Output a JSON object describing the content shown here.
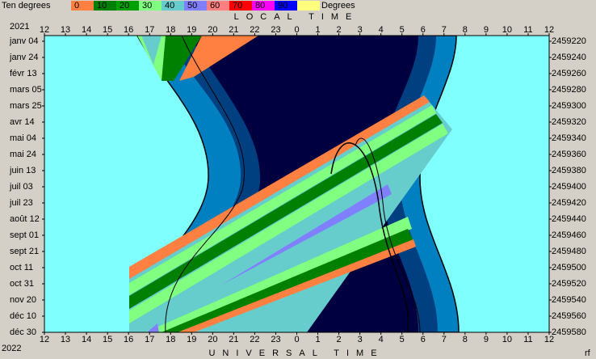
{
  "legend": {
    "title": "Ten degrees",
    "unit": "Degrees",
    "labels": [
      "0",
      "10",
      "20",
      "30",
      "40",
      "50",
      "60",
      "70",
      "80",
      "90"
    ]
  },
  "top_axis_title": "LOCAL TIME",
  "bottom_axis_title": "UNIVERSAL TIME",
  "start_year": "2021",
  "end_year": "2022",
  "corner_label": "rf",
  "top_hours": [
    "12",
    "13",
    "14",
    "15",
    "16",
    "17",
    "18",
    "19",
    "20",
    "21",
    "22",
    "23",
    "0",
    "1",
    "2",
    "3",
    "4",
    "5",
    "6",
    "7",
    "8",
    "9",
    "10",
    "11",
    "12"
  ],
  "bottom_hours": [
    "12",
    "13",
    "14",
    "15",
    "16",
    "17",
    "18",
    "19",
    "20",
    "21",
    "22",
    "23",
    "0",
    "1",
    "2",
    "3",
    "4",
    "5",
    "6",
    "7",
    "8",
    "9",
    "10",
    "11",
    "12"
  ],
  "dates": [
    "janv 04",
    "janv 24",
    "févr 13",
    "mars 05",
    "mars 25",
    "avr 14",
    "mai 04",
    "mai 24",
    "juin 13",
    "juil 03",
    "juil 23",
    "août 12",
    "sept 01",
    "sept 21",
    "oct 11",
    "oct 31",
    "nov 20",
    "déc 10",
    "déc 30"
  ],
  "julian_days": [
    "2459220",
    "2459240",
    "2459260",
    "2459280",
    "2459300",
    "2459320",
    "2459340",
    "2459360",
    "2459380",
    "2459400",
    "2459420",
    "2459440",
    "2459460",
    "2459480",
    "2459500",
    "2459520",
    "2459540",
    "2459560",
    "2459580"
  ]
}
